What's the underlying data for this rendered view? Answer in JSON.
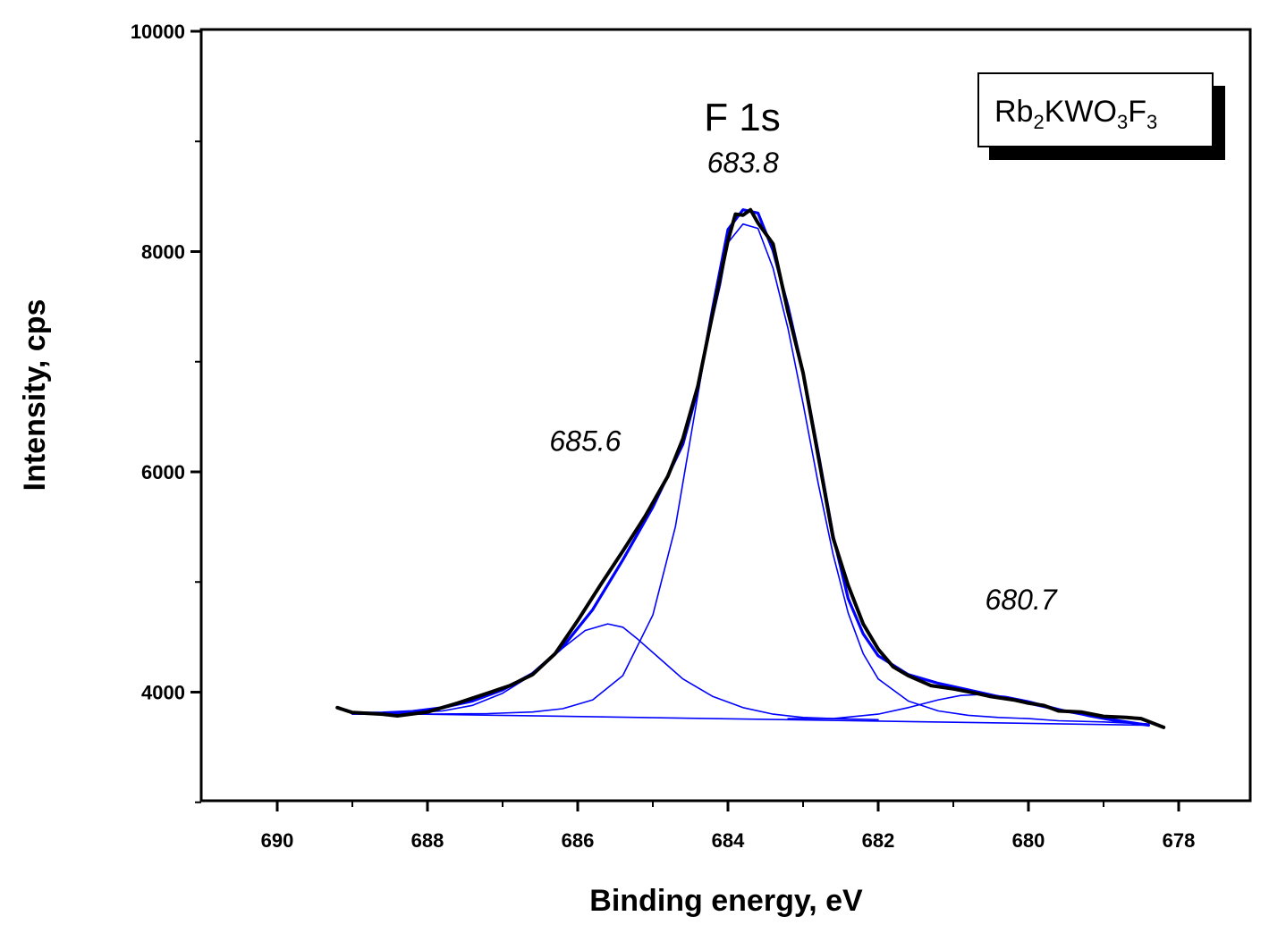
{
  "chart_data": {
    "type": "line",
    "title": "F 1s",
    "xlabel": "Binding energy, eV",
    "ylabel": "Intensity, cps",
    "xlim": [
      691,
      677
    ],
    "ylim": [
      3000,
      10000
    ],
    "x_reversed": true,
    "x_ticks": [
      690,
      688,
      686,
      684,
      682,
      680,
      678
    ],
    "y_ticks": [
      4000,
      6000,
      8000,
      10000
    ],
    "y_minor_ticks": [
      3000,
      5000,
      7000,
      9000
    ],
    "grid": false,
    "legend": {
      "position": "top-right",
      "label": {
        "base1": "Rb",
        "sub1": "2",
        "base2": "KWO",
        "sub2": "3",
        "base3": "F",
        "sub3": "3"
      }
    },
    "annotations": [
      {
        "text": "683.8",
        "x": 683.8,
        "y": 8720
      },
      {
        "text": "685.6",
        "x": 685.9,
        "y": 6190
      },
      {
        "text": "680.7",
        "x": 680.1,
        "y": 4750
      }
    ],
    "colors": {
      "experimental": "#000000",
      "fit": "#0000ff"
    },
    "series": [
      {
        "role": "experimental",
        "x": [
          689.2,
          689.0,
          688.6,
          688.4,
          688.0,
          687.6,
          687.2,
          686.9,
          686.6,
          686.3,
          686.0,
          685.7,
          685.4,
          685.1,
          684.8,
          684.6,
          684.4,
          684.2,
          684.0,
          683.9,
          683.8,
          683.7,
          683.6,
          683.4,
          683.2,
          683.0,
          682.8,
          682.6,
          682.4,
          682.2,
          682.0,
          681.8,
          681.6,
          681.3,
          681.0,
          680.7,
          680.5,
          680.2,
          680.0,
          679.8,
          679.6,
          679.3,
          679.0,
          678.7,
          678.5,
          678.2
        ],
        "y": [
          3860,
          3815,
          3800,
          3785,
          3820,
          3900,
          3990,
          4060,
          4160,
          4350,
          4650,
          4970,
          5280,
          5600,
          5960,
          6300,
          6780,
          7450,
          8100,
          8340,
          8330,
          8380,
          8260,
          8070,
          7450,
          6900,
          6150,
          5400,
          4970,
          4620,
          4390,
          4230,
          4150,
          4060,
          4030,
          3990,
          3960,
          3930,
          3900,
          3880,
          3830,
          3820,
          3780,
          3770,
          3760,
          3680
        ]
      },
      {
        "role": "envelope",
        "x": [
          689.0,
          688.6,
          688.2,
          687.8,
          687.4,
          687.0,
          686.6,
          686.2,
          685.8,
          685.4,
          685.0,
          684.6,
          684.4,
          684.2,
          684.0,
          683.8,
          683.6,
          683.4,
          683.2,
          683.0,
          682.8,
          682.6,
          682.4,
          682.2,
          682.0,
          681.6,
          681.2,
          680.8,
          680.4,
          680.0,
          679.6,
          679.2,
          678.8,
          678.4
        ],
        "y": [
          3810,
          3812,
          3825,
          3860,
          3920,
          4020,
          4170,
          4410,
          4750,
          5200,
          5680,
          6250,
          6750,
          7500,
          8200,
          8380,
          8350,
          8010,
          7500,
          6900,
          6180,
          5420,
          4850,
          4530,
          4330,
          4160,
          4080,
          4020,
          3960,
          3900,
          3840,
          3790,
          3740,
          3700
        ]
      },
      {
        "role": "component",
        "name": "683.8",
        "x": [
          689.0,
          688.0,
          687.2,
          686.6,
          686.2,
          685.8,
          685.4,
          685.0,
          684.7,
          684.5,
          684.3,
          684.1,
          684.0,
          683.8,
          683.6,
          683.4,
          683.2,
          683.0,
          682.8,
          682.6,
          682.4,
          682.2,
          682.0,
          681.6,
          681.2,
          680.8,
          680.4,
          680.0,
          679.6,
          679.0,
          678.4
        ],
        "y": [
          3800,
          3800,
          3805,
          3820,
          3850,
          3930,
          4150,
          4700,
          5500,
          6300,
          7100,
          7700,
          8080,
          8250,
          8210,
          7850,
          7300,
          6620,
          5900,
          5250,
          4720,
          4350,
          4120,
          3920,
          3830,
          3790,
          3770,
          3760,
          3740,
          3730,
          3710
        ]
      },
      {
        "role": "component",
        "name": "685.6",
        "x": [
          689.0,
          688.4,
          687.8,
          687.4,
          687.0,
          686.6,
          686.2,
          685.9,
          685.6,
          685.4,
          685.2,
          684.9,
          684.6,
          684.2,
          683.8,
          683.4,
          683.0,
          682.6,
          682.0
        ],
        "y": [
          3800,
          3805,
          3830,
          3880,
          3990,
          4160,
          4400,
          4560,
          4620,
          4590,
          4480,
          4300,
          4120,
          3960,
          3860,
          3800,
          3770,
          3760,
          3750
        ]
      },
      {
        "role": "component",
        "name": "680.7",
        "x": [
          683.2,
          682.6,
          682.0,
          681.6,
          681.2,
          680.9,
          680.6,
          680.3,
          680.0,
          679.6,
          679.2,
          678.8,
          678.4
        ],
        "y": [
          3760,
          3760,
          3800,
          3860,
          3930,
          3970,
          3980,
          3960,
          3920,
          3850,
          3780,
          3730,
          3710
        ]
      },
      {
        "role": "background",
        "x": [
          689.0,
          678.4
        ],
        "y": [
          3810,
          3700
        ]
      }
    ]
  }
}
